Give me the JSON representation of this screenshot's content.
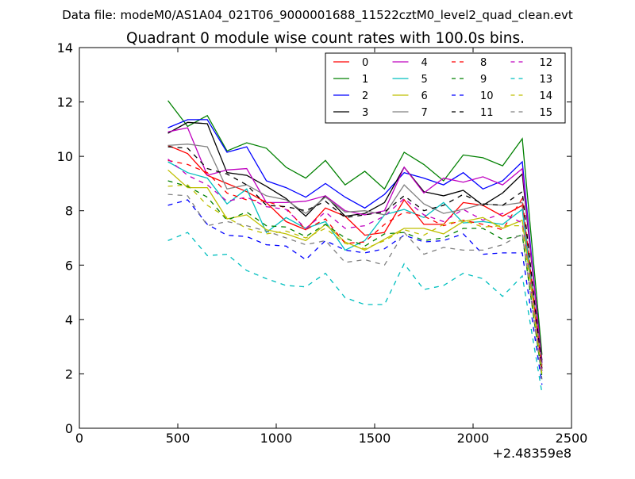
{
  "chart_data": {
    "type": "line",
    "suptitle": "Data file: modeM0/AS1A04_021T06_9000001688_11522cztM0_level2_quad_clean.evt",
    "title": "Quadrant 0 module wise count rates with 100.0s bins.",
    "xlabel": "",
    "ylabel": "",
    "x_offset_label": "+2.48359e8",
    "xlim": [
      0,
      2500
    ],
    "ylim": [
      0,
      14
    ],
    "xticks": [
      "0",
      "500",
      "1000",
      "1500",
      "2000",
      "2500"
    ],
    "yticks": [
      "0",
      "2",
      "4",
      "6",
      "8",
      "10",
      "12",
      "14"
    ],
    "grid": false,
    "legend_position": "top-right",
    "x": [
      450,
      550,
      650,
      750,
      850,
      950,
      1050,
      1150,
      1250,
      1350,
      1450,
      1550,
      1650,
      1750,
      1850,
      1950,
      2050,
      2150,
      2250,
      2350
    ],
    "series": [
      {
        "name": "0",
        "color": "#ff0000",
        "dash": "solid",
        "values": [
          10.4,
          10.1,
          9.3,
          9.0,
          8.7,
          8.3,
          7.6,
          7.3,
          8.1,
          7.8,
          7.1,
          7.2,
          8.4,
          7.5,
          7.5,
          8.3,
          8.2,
          7.8,
          8.2,
          2.3
        ]
      },
      {
        "name": "1",
        "color": "#008000",
        "dash": "solid",
        "values": [
          12.05,
          11.1,
          11.5,
          10.2,
          10.5,
          10.3,
          9.6,
          9.2,
          9.85,
          8.95,
          9.45,
          8.8,
          10.15,
          9.7,
          9.1,
          10.05,
          9.95,
          9.65,
          10.65,
          2.7
        ]
      },
      {
        "name": "2",
        "color": "#0000ff",
        "dash": "solid",
        "values": [
          11.05,
          11.35,
          11.35,
          10.15,
          10.35,
          9.1,
          8.85,
          8.5,
          9.0,
          8.5,
          8.1,
          8.6,
          9.4,
          9.2,
          8.95,
          9.4,
          8.8,
          9.1,
          9.8,
          2.4
        ]
      },
      {
        "name": "3",
        "color": "#000000",
        "dash": "solid",
        "values": [
          10.85,
          11.25,
          11.2,
          9.4,
          9.3,
          8.9,
          8.45,
          7.8,
          8.55,
          7.8,
          7.9,
          8.3,
          9.6,
          8.7,
          8.55,
          8.75,
          8.2,
          8.65,
          9.35,
          2.5
        ]
      },
      {
        "name": "4",
        "color": "#bf00bf",
        "dash": "solid",
        "values": [
          10.9,
          11.05,
          9.3,
          9.5,
          9.55,
          8.3,
          8.3,
          8.35,
          8.55,
          8.0,
          7.85,
          8.0,
          9.6,
          8.65,
          9.2,
          9.05,
          9.25,
          8.95,
          9.55,
          2.4
        ]
      },
      {
        "name": "5",
        "color": "#00bfbf",
        "dash": "solid",
        "values": [
          9.8,
          9.4,
          9.2,
          8.25,
          8.8,
          7.2,
          7.75,
          7.35,
          7.6,
          6.55,
          6.9,
          7.85,
          8.05,
          7.75,
          8.3,
          7.55,
          7.6,
          7.5,
          8.05,
          2.1
        ]
      },
      {
        "name": "6",
        "color": "#bfbf00",
        "dash": "solid",
        "values": [
          9.5,
          8.85,
          8.85,
          7.7,
          7.85,
          7.3,
          7.15,
          6.9,
          7.5,
          6.85,
          6.55,
          6.95,
          7.35,
          7.35,
          7.15,
          7.6,
          7.75,
          7.35,
          7.65,
          2.2
        ]
      },
      {
        "name": "7",
        "color": "#808080",
        "dash": "solid",
        "values": [
          10.4,
          10.45,
          10.35,
          8.8,
          8.95,
          8.55,
          8.4,
          7.9,
          8.5,
          7.95,
          8.0,
          7.85,
          8.95,
          8.25,
          7.9,
          8.05,
          8.25,
          8.2,
          8.3,
          2.3
        ]
      },
      {
        "name": "8",
        "color": "#ff0000",
        "dash": "dashed",
        "values": [
          9.85,
          9.7,
          9.4,
          8.65,
          8.4,
          8.35,
          8.1,
          7.3,
          7.7,
          6.8,
          6.85,
          7.5,
          7.95,
          7.8,
          7.45,
          7.65,
          7.5,
          7.3,
          8.45,
          2.1
        ]
      },
      {
        "name": "9",
        "color": "#008000",
        "dash": "dashed",
        "values": [
          9.1,
          8.9,
          8.5,
          7.65,
          7.95,
          7.45,
          7.4,
          7.05,
          7.5,
          7.0,
          6.7,
          7.15,
          7.2,
          6.9,
          7.0,
          7.35,
          7.35,
          6.95,
          7.1,
          1.9
        ]
      },
      {
        "name": "10",
        "color": "#0000ff",
        "dash": "dashed",
        "values": [
          8.2,
          8.4,
          7.5,
          7.1,
          7.05,
          6.75,
          6.7,
          6.2,
          6.9,
          6.55,
          6.45,
          6.6,
          7.1,
          6.85,
          6.9,
          7.15,
          6.4,
          6.45,
          6.45,
          1.6
        ]
      },
      {
        "name": "11",
        "color": "#000000",
        "dash": "dashed",
        "values": [
          10.35,
          10.3,
          9.55,
          9.35,
          8.95,
          8.2,
          8.15,
          8.0,
          8.35,
          7.75,
          7.85,
          7.95,
          8.55,
          8.0,
          8.2,
          8.6,
          8.25,
          8.2,
          8.7,
          2.2
        ]
      },
      {
        "name": "12",
        "color": "#bf00bf",
        "dash": "dashed",
        "values": [
          9.9,
          9.3,
          8.95,
          8.35,
          8.5,
          8.15,
          8.05,
          7.35,
          7.95,
          7.35,
          7.45,
          7.8,
          8.45,
          7.85,
          7.6,
          8.05,
          7.65,
          7.9,
          7.55,
          2.1
        ]
      },
      {
        "name": "13",
        "color": "#00bfbf",
        "dash": "dashed",
        "values": [
          6.9,
          7.2,
          6.35,
          6.4,
          5.8,
          5.5,
          5.25,
          5.2,
          5.7,
          4.8,
          4.55,
          4.55,
          6.05,
          5.1,
          5.25,
          5.7,
          5.5,
          4.85,
          5.6,
          1.3
        ]
      },
      {
        "name": "14",
        "color": "#bfbf00",
        "dash": "dashed",
        "values": [
          8.9,
          8.95,
          8.2,
          7.75,
          7.35,
          7.15,
          7.25,
          7.0,
          7.35,
          6.8,
          6.6,
          6.9,
          7.3,
          7.1,
          7.5,
          7.65,
          7.4,
          7.45,
          7.45,
          2.0
        ]
      },
      {
        "name": "15",
        "color": "#808080",
        "dash": "dashed",
        "values": [
          8.6,
          8.55,
          7.45,
          7.6,
          7.45,
          7.25,
          7.0,
          6.75,
          6.9,
          6.1,
          6.2,
          6.0,
          7.2,
          6.4,
          6.65,
          6.55,
          6.55,
          6.75,
          7.15,
          1.8
        ]
      }
    ]
  }
}
